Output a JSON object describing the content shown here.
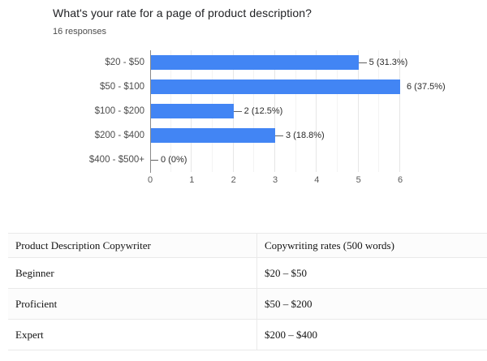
{
  "chart": {
    "title": "What's your rate for a page of product description?",
    "responses_label": "16 responses"
  },
  "chart_data": {
    "type": "bar",
    "orientation": "horizontal",
    "title": "What's your rate for a page of product description?",
    "subtitle": "16 responses",
    "categories": [
      "$20 - $50",
      "$50 - $100",
      "$100 - $200",
      "$200 - $400",
      "$400 - $500+"
    ],
    "values": [
      5,
      6,
      2,
      3,
      0
    ],
    "value_labels": [
      "5 (31.3%)",
      "6 (37.5%)",
      "2 (12.5%)",
      "3 (18.8%)",
      "0 (0%)"
    ],
    "percentages": [
      31.3,
      37.5,
      12.5,
      18.8,
      0
    ],
    "x_ticks": [
      0,
      1,
      2,
      3,
      4,
      5,
      6
    ],
    "xlim": [
      0,
      6
    ],
    "grid": true,
    "minor_grid_step": 0.5,
    "bar_color": "#4285f4",
    "legend_position": "none",
    "xlabel": "",
    "ylabel": ""
  },
  "table": {
    "headers": [
      "Product Description Copywriter",
      "Copywriting rates (500 words)"
    ],
    "rows": [
      [
        "Beginner",
        "$20 – $50"
      ],
      [
        "Proficient",
        "$50 – $200"
      ],
      [
        "Expert",
        "$200 – $400"
      ]
    ]
  }
}
